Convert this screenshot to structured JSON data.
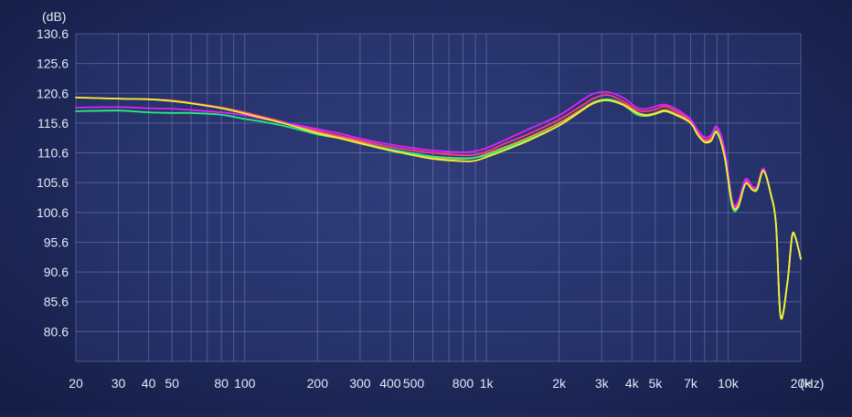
{
  "chart_data": {
    "type": "line",
    "ylabel": "(dB)",
    "xunit": "(Hz)",
    "x_scale": "log",
    "grid": true,
    "legend": "none",
    "xlim": [
      20,
      20000
    ],
    "ylim": [
      75.6,
      130.6
    ],
    "y_ticks": [
      130.6,
      125.6,
      120.6,
      115.6,
      110.6,
      105.6,
      100.6,
      95.6,
      90.6,
      85.6,
      80.6
    ],
    "x_ticks": [
      {
        "value": 20,
        "label": "20"
      },
      {
        "value": 30,
        "label": "30"
      },
      {
        "value": 40,
        "label": "40"
      },
      {
        "value": 50,
        "label": "50"
      },
      {
        "value": 80,
        "label": "80"
      },
      {
        "value": 100,
        "label": "100"
      },
      {
        "value": 200,
        "label": "200"
      },
      {
        "value": 300,
        "label": "300"
      },
      {
        "value": 400,
        "label": "400"
      },
      {
        "value": 500,
        "label": "500"
      },
      {
        "value": 800,
        "label": "800"
      },
      {
        "value": 1000,
        "label": "1k"
      },
      {
        "value": 2000,
        "label": "2k"
      },
      {
        "value": 3000,
        "label": "3k"
      },
      {
        "value": 4000,
        "label": "4k"
      },
      {
        "value": 5000,
        "label": "5k"
      },
      {
        "value": 7000,
        "label": "7k"
      },
      {
        "value": 10000,
        "label": "10k"
      },
      {
        "value": 20000,
        "label": "20k"
      }
    ],
    "x_gridlines": [
      20,
      30,
      40,
      50,
      60,
      70,
      80,
      90,
      100,
      200,
      300,
      400,
      500,
      600,
      700,
      800,
      900,
      1000,
      2000,
      3000,
      4000,
      5000,
      6000,
      7000,
      8000,
      9000,
      10000,
      20000
    ],
    "series": [
      {
        "color": "#ff9a3c",
        "x": [
          20,
          30,
          40,
          50,
          60,
          80,
          100,
          120,
          150,
          200,
          250,
          300,
          400,
          500,
          600,
          800,
          900,
          1000,
          1200,
          1500,
          2000,
          2500,
          2800,
          3200,
          3700,
          4200,
          4600,
          5000,
          5500,
          6200,
          7000,
          7500,
          8000,
          8500,
          9000,
          9700,
          10400,
          11000,
          11800,
          12600,
          13200,
          14000,
          15000,
          15800,
          16500,
          17600,
          18400,
          19000,
          20000
        ],
        "y": [
          119.9,
          119.7,
          119.6,
          119.4,
          119.0,
          118.2,
          117.4,
          116.6,
          115.6,
          114.2,
          113.2,
          112.4,
          111.2,
          110.4,
          109.8,
          109.6,
          109.8,
          110.4,
          111.6,
          113.2,
          115.6,
          118.0,
          119.2,
          119.6,
          118.8,
          117.4,
          117.0,
          117.3,
          117.8,
          117.0,
          115.8,
          113.8,
          112.6,
          112.8,
          114.2,
          110.0,
          102.2,
          101.8,
          105.6,
          104.6,
          104.7,
          107.8,
          103.8,
          98.4,
          83.2,
          88.8,
          96.6,
          96.4,
          92.8
        ]
      },
      {
        "color": "#ff3d7a",
        "x": [
          20,
          30,
          40,
          50,
          60,
          80,
          100,
          120,
          150,
          200,
          250,
          300,
          400,
          500,
          600,
          800,
          900,
          1000,
          1200,
          1500,
          2000,
          2500,
          2800,
          3200,
          3700,
          4200,
          4600,
          5000,
          5500,
          6200,
          7000,
          7500,
          8000,
          8500,
          9000,
          9700,
          10400,
          11000,
          11800,
          12600,
          13200,
          14000,
          15000,
          15800,
          16500,
          17600,
          18400,
          19000,
          20000
        ],
        "y": [
          119.9,
          119.7,
          119.6,
          119.4,
          119.0,
          118.2,
          117.4,
          116.6,
          115.6,
          114.3,
          113.4,
          112.7,
          111.6,
          111.0,
          110.6,
          110.2,
          110.3,
          110.8,
          112.2,
          113.8,
          116.2,
          118.6,
          119.8,
          120.3,
          119.2,
          117.8,
          117.6,
          117.9,
          118.4,
          117.4,
          116.0,
          114.0,
          112.8,
          113.2,
          114.8,
          110.6,
          102.4,
          102.0,
          105.8,
          104.8,
          104.8,
          107.8,
          103.8,
          98.4,
          83.2,
          88.8,
          96.6,
          96.4,
          92.8
        ]
      },
      {
        "color": "#e020ff",
        "x": [
          20,
          30,
          40,
          50,
          60,
          80,
          100,
          120,
          150,
          200,
          250,
          300,
          400,
          500,
          600,
          800,
          900,
          1000,
          1200,
          1500,
          2000,
          2500,
          2800,
          3200,
          3700,
          4200,
          4600,
          5000,
          5500,
          6200,
          7000,
          7500,
          8000,
          8500,
          9000,
          9700,
          10400,
          11000,
          11800,
          12600,
          13200,
          14000,
          15000,
          15800,
          16500,
          17600,
          18400,
          19000,
          20000
        ],
        "y": [
          118.2,
          118.3,
          118.1,
          118.0,
          117.8,
          117.4,
          116.9,
          116.3,
          115.6,
          114.6,
          113.8,
          113.0,
          112.0,
          111.4,
          111.0,
          110.7,
          110.9,
          111.4,
          112.8,
          114.6,
          116.9,
          119.5,
          120.6,
          120.8,
          119.8,
          118.2,
          118.0,
          118.4,
          118.7,
          117.8,
          116.2,
          114.4,
          113.2,
          113.6,
          115.0,
          111.0,
          102.6,
          102.4,
          106.2,
          105.0,
          105.0,
          108.0,
          103.8,
          98.4,
          83.2,
          88.8,
          96.6,
          96.4,
          92.8
        ]
      },
      {
        "color": "#26f07a",
        "x": [
          20,
          30,
          40,
          50,
          60,
          80,
          100,
          120,
          150,
          200,
          250,
          300,
          400,
          500,
          600,
          800,
          900,
          1000,
          1200,
          1500,
          2000,
          2500,
          2800,
          3200,
          3700,
          4200,
          4600,
          5000,
          5500,
          6200,
          7000,
          7500,
          8000,
          8500,
          9000,
          9700,
          10400,
          11000,
          11800,
          12600,
          13200,
          14000,
          15000,
          15800,
          16500,
          17600,
          18400,
          19000,
          20000
        ],
        "y": [
          117.6,
          117.7,
          117.4,
          117.3,
          117.3,
          117.0,
          116.3,
          115.8,
          115.0,
          113.7,
          113.0,
          112.2,
          111.2,
          110.5,
          110.0,
          109.7,
          109.8,
          110.2,
          111.4,
          112.9,
          115.2,
          117.8,
          119.1,
          119.6,
          118.6,
          117.0,
          116.8,
          117.1,
          117.6,
          116.8,
          115.6,
          113.6,
          112.4,
          112.6,
          114.2,
          109.6,
          101.6,
          101.4,
          105.4,
          104.4,
          104.4,
          107.6,
          103.8,
          98.4,
          83.2,
          88.8,
          96.6,
          96.4,
          92.8
        ]
      },
      {
        "color": "#f4f030",
        "x": [
          20,
          30,
          40,
          50,
          60,
          80,
          100,
          120,
          150,
          200,
          250,
          300,
          400,
          500,
          600,
          800,
          900,
          1000,
          1200,
          1500,
          2000,
          2500,
          2800,
          3200,
          3700,
          4200,
          4600,
          5000,
          5500,
          6200,
          7000,
          7500,
          8000,
          8500,
          9000,
          9700,
          10400,
          11000,
          11800,
          12600,
          13200,
          14000,
          15000,
          15800,
          16500,
          17600,
          18400,
          19000,
          20000
        ],
        "y": [
          119.9,
          119.7,
          119.6,
          119.3,
          118.9,
          118.1,
          117.2,
          116.4,
          115.4,
          113.9,
          113.0,
          112.2,
          111.0,
          110.2,
          109.6,
          109.2,
          109.3,
          109.9,
          111.1,
          112.7,
          115.2,
          117.8,
          119.0,
          119.4,
          118.6,
          117.3,
          116.9,
          117.2,
          117.6,
          116.8,
          115.6,
          113.6,
          112.4,
          112.6,
          114.0,
          109.8,
          102.0,
          101.6,
          105.4,
          104.4,
          104.6,
          107.6,
          103.8,
          98.4,
          83.0,
          88.8,
          96.6,
          96.4,
          92.8
        ]
      }
    ]
  }
}
